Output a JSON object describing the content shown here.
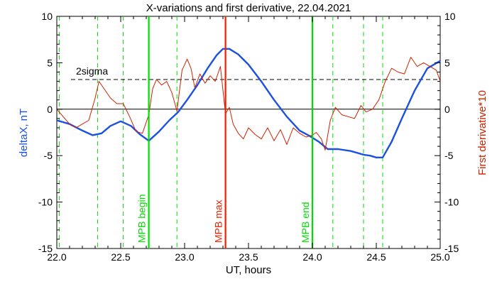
{
  "chart_data": {
    "type": "line",
    "title": "X-variations and first derivative, 22.04.2021",
    "xlabel": "UT, hours",
    "ylabel_left": "deltaX, nT",
    "ylabel_right": "First derivative*10",
    "xlim": [
      22.0,
      25.0
    ],
    "ylim": [
      -15,
      10
    ],
    "x_ticks": [
      "22.0",
      "22.5",
      "23.0",
      "23.5",
      "24.0",
      "24.5",
      "25.0"
    ],
    "y_ticks_left": [
      "-15",
      "-10",
      "-5",
      "0",
      "5",
      "10"
    ],
    "y_ticks_right": [
      "-15",
      "-10",
      "-5",
      "0",
      "5",
      "10"
    ],
    "colors": {
      "deltaX": "#1c50e0",
      "derivative": "#cc2200",
      "mpb_lines": "#00dd00",
      "mpb_max": "#ee2200",
      "axes": "#000000"
    },
    "threshold": {
      "label": "2sigma",
      "value": 3.2
    },
    "vertical_lines": [
      {
        "x": 22.72,
        "label": "MPB begin",
        "color": "#00dd00"
      },
      {
        "x": 23.32,
        "label": "MPB max",
        "color": "#ee2200"
      },
      {
        "x": 24.0,
        "label": "MPB end",
        "color": "#00dd00"
      }
    ],
    "dashed_markers": [
      22.02,
      22.32,
      22.52,
      22.94,
      24.16,
      24.4,
      24.55
    ],
    "series": [
      {
        "color": "#1c50e0",
        "x": [
          22.0,
          22.1,
          22.2,
          22.28,
          22.35,
          22.42,
          22.5,
          22.58,
          22.65,
          22.72,
          22.8,
          22.88,
          22.95,
          23.02,
          23.1,
          23.18,
          23.25,
          23.3,
          23.35,
          23.42,
          23.5,
          23.6,
          23.7,
          23.8,
          23.9,
          23.98,
          24.05,
          24.12,
          24.2,
          24.3,
          24.4,
          24.45,
          24.5,
          24.55,
          24.62,
          24.7,
          24.8,
          24.9,
          25.0
        ],
        "y": [
          -1.2,
          -1.6,
          -2.3,
          -2.8,
          -2.6,
          -1.8,
          -1.3,
          -1.8,
          -2.7,
          -3.4,
          -2.4,
          -1.2,
          -0.3,
          1.0,
          2.6,
          4.4,
          5.8,
          6.5,
          6.5,
          5.9,
          4.8,
          3.0,
          1.0,
          -0.8,
          -2.3,
          -2.9,
          -3.5,
          -4.3,
          -4.3,
          -4.5,
          -4.9,
          -5.0,
          -5.2,
          -5.2,
          -3.5,
          -1.0,
          2.0,
          4.4,
          5.2
        ]
      },
      {
        "color": "#cc2200",
        "x": [
          22.0,
          22.05,
          22.1,
          22.15,
          22.2,
          22.25,
          22.3,
          22.33,
          22.37,
          22.42,
          22.47,
          22.52,
          22.57,
          22.62,
          22.67,
          22.72,
          22.75,
          22.78,
          22.82,
          22.86,
          22.9,
          22.94,
          22.98,
          23.02,
          23.05,
          23.08,
          23.12,
          23.16,
          23.2,
          23.24,
          23.28,
          23.32,
          23.35,
          23.38,
          23.42,
          23.46,
          23.5,
          23.55,
          23.6,
          23.65,
          23.7,
          23.75,
          23.8,
          23.85,
          23.9,
          23.95,
          24.0,
          24.03,
          24.07,
          24.1,
          24.14,
          24.18,
          24.23,
          24.28,
          24.33,
          24.38,
          24.42,
          24.47,
          24.52,
          24.57,
          24.62,
          24.67,
          24.72,
          24.77,
          24.82,
          24.87,
          24.92,
          24.97,
          25.0
        ],
        "y": [
          0.0,
          -0.8,
          -1.6,
          -2.0,
          -1.6,
          -1.2,
          1.2,
          3.0,
          2.2,
          1.2,
          0.6,
          0.6,
          -0.8,
          -2.4,
          -2.6,
          -0.6,
          2.2,
          3.2,
          2.6,
          3.0,
          1.8,
          -0.2,
          4.2,
          5.4,
          4.4,
          2.3,
          3.8,
          2.8,
          3.6,
          3.0,
          4.6,
          -0.5,
          0.2,
          -1.6,
          -2.6,
          -3.2,
          -2.0,
          -2.7,
          -3.2,
          -2.0,
          -3.4,
          -2.2,
          -3.8,
          -2.0,
          -2.6,
          -3.0,
          -2.8,
          -2.5,
          -3.2,
          -4.4,
          -1.2,
          0.2,
          -0.6,
          -0.8,
          -1.0,
          0.4,
          -0.3,
          0.0,
          1.0,
          3.0,
          4.4,
          4.0,
          3.8,
          5.6,
          4.6,
          5.0,
          4.6,
          4.2,
          3.0
        ]
      }
    ],
    "zero_line": 0,
    "grid": false,
    "legend": "none"
  }
}
